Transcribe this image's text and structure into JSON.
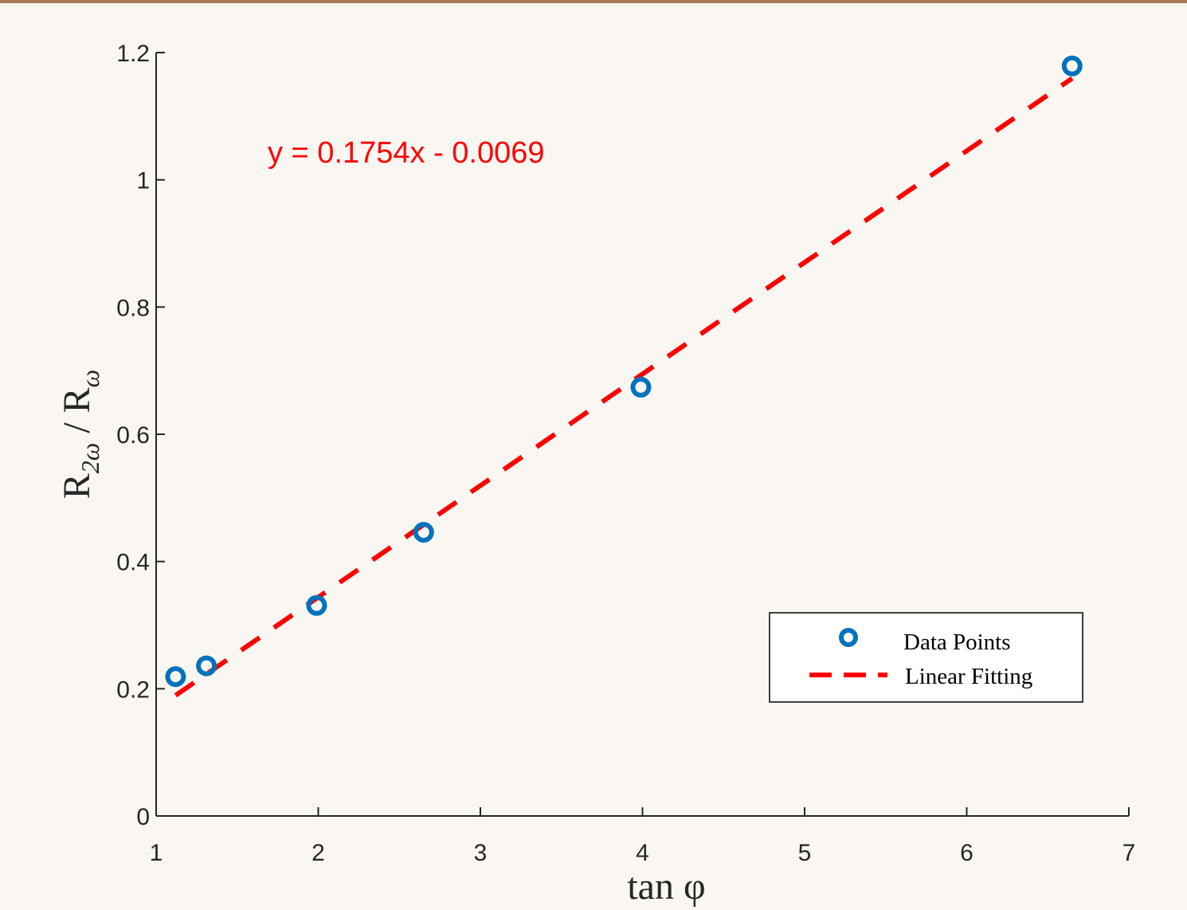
{
  "colors": {
    "background": "#faf7f2",
    "top_bar": "#a87a55",
    "axis": "#262626",
    "data_points": "#0072bd",
    "fit_line": "#ff0000"
  },
  "chart_data": {
    "type": "scatter",
    "xlabel": "tan φ",
    "ylabel": {
      "numerator_base": "R",
      "numerator_subscript": "2ω",
      "separator": " / ",
      "denominator_base": "R",
      "denominator_subscript": "ω"
    },
    "xlim": [
      1,
      7
    ],
    "ylim": [
      0,
      1.2
    ],
    "x_ticks": [
      1,
      2,
      3,
      4,
      5,
      6,
      7
    ],
    "y_ticks": [
      0,
      0.2,
      0.4,
      0.6,
      0.8,
      1,
      1.2
    ],
    "x_tick_labels": [
      "1",
      "2",
      "3",
      "4",
      "5",
      "6",
      "7"
    ],
    "y_tick_labels": [
      "0",
      "0.2",
      "0.4",
      "0.6",
      "0.8",
      "1",
      "1.2"
    ],
    "grid": false,
    "series": [
      {
        "name": "Data Points",
        "marker": "open-circle",
        "points": [
          {
            "x": 1.12,
            "y": 0.219
          },
          {
            "x": 1.31,
            "y": 0.236
          },
          {
            "x": 1.99,
            "y": 0.331
          },
          {
            "x": 2.65,
            "y": 0.446
          },
          {
            "x": 3.99,
            "y": 0.674
          },
          {
            "x": 6.65,
            "y": 1.179
          }
        ]
      },
      {
        "name": "Linear Fitting",
        "style": "dashed",
        "slope": 0.1754,
        "intercept": -0.0069,
        "x_range": [
          1.12,
          6.65
        ]
      }
    ],
    "annotations": [
      {
        "text": "y = 0.1754x - 0.0069"
      }
    ],
    "legend": {
      "placement": "lower-right",
      "entries": [
        "Data Points",
        "Linear Fitting"
      ]
    }
  }
}
